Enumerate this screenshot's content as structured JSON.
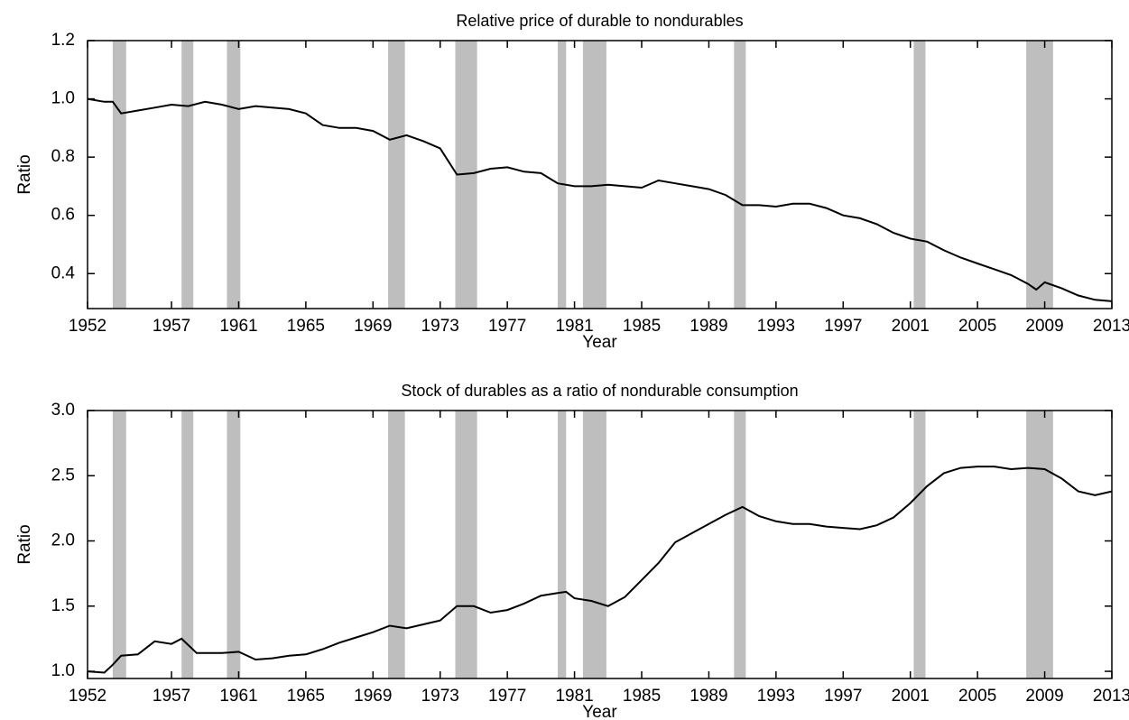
{
  "chart_data": [
    {
      "type": "line",
      "title": "Relative price of durable to nondurables",
      "ylabel": "Ratio",
      "xlabel": "Year",
      "xlim": [
        1952,
        2013
      ],
      "xticks": [
        1952,
        1957,
        1961,
        1965,
        1969,
        1973,
        1977,
        1981,
        1985,
        1989,
        1993,
        1997,
        2001,
        2005,
        2009,
        2013
      ],
      "ylim": [
        0.28,
        1.2
      ],
      "yticks": [
        0.4,
        0.6,
        0.8,
        {
          "value": 1,
          "label": "1.0"
        },
        1.2
      ],
      "recession_color": "#bebebe",
      "recessions": [
        [
          1953.5,
          1954.3
        ],
        [
          1957.6,
          1958.3
        ],
        [
          1960.3,
          1961.1
        ],
        [
          1969.9,
          1970.9
        ],
        [
          1973.9,
          1975.2
        ],
        [
          1980.0,
          1980.5
        ],
        [
          1981.5,
          1982.9
        ],
        [
          1990.5,
          1991.2
        ],
        [
          2001.2,
          2001.9
        ],
        [
          2007.9,
          2009.5
        ]
      ],
      "x": [
        1952,
        1953,
        1953.5,
        1954,
        1955,
        1956,
        1957,
        1958,
        1959,
        1960,
        1961,
        1962,
        1963,
        1964,
        1965,
        1966,
        1967,
        1968,
        1969,
        1970,
        1971,
        1972,
        1973,
        1974,
        1975,
        1976,
        1977,
        1978,
        1979,
        1980,
        1981,
        1982,
        1983,
        1984,
        1985,
        1986,
        1987,
        1988,
        1989,
        1990,
        1991,
        1992,
        1993,
        1994,
        1995,
        1996,
        1997,
        1998,
        1999,
        2000,
        2001,
        2002,
        2003,
        2004,
        2005,
        2006,
        2007,
        2008,
        2008.5,
        2009,
        2010,
        2011,
        2012,
        2013
      ],
      "color": "#000000",
      "values": [
        1.0,
        0.99,
        0.99,
        0.95,
        0.96,
        0.97,
        0.98,
        0.975,
        0.99,
        0.98,
        0.965,
        0.975,
        0.97,
        0.965,
        0.95,
        0.91,
        0.9,
        0.9,
        0.89,
        0.86,
        0.875,
        0.855,
        0.83,
        0.74,
        0.745,
        0.76,
        0.765,
        0.75,
        0.745,
        0.71,
        0.7,
        0.7,
        0.705,
        0.7,
        0.695,
        0.72,
        0.71,
        0.7,
        0.69,
        0.67,
        0.635,
        0.635,
        0.63,
        0.64,
        0.64,
        0.625,
        0.6,
        0.59,
        0.57,
        0.54,
        0.52,
        0.51,
        0.48,
        0.455,
        0.435,
        0.415,
        0.395,
        0.365,
        0.345,
        0.37,
        0.35,
        0.325,
        0.31,
        0.305
      ]
    },
    {
      "type": "line",
      "title": "Stock of durables as a ratio of nondurable consumption",
      "ylabel": "Ratio",
      "xlabel": "Year",
      "xlim": [
        1952,
        2013
      ],
      "xticks": [
        1952,
        1957,
        1961,
        1965,
        1969,
        1973,
        1977,
        1981,
        1985,
        1989,
        1993,
        1997,
        2001,
        2005,
        2009,
        2013
      ],
      "ylim": [
        0.945,
        3
      ],
      "yticks": [
        {
          "value": 1,
          "label": "1.0"
        },
        1.5,
        {
          "value": 2,
          "label": "2.0"
        },
        2.5,
        {
          "value": 3,
          "label": "3.0"
        }
      ],
      "recession_color": "#bebebe",
      "recessions": [
        [
          1953.5,
          1954.3
        ],
        [
          1957.6,
          1958.3
        ],
        [
          1960.3,
          1961.1
        ],
        [
          1969.9,
          1970.9
        ],
        [
          1973.9,
          1975.2
        ],
        [
          1980.0,
          1980.5
        ],
        [
          1981.5,
          1982.9
        ],
        [
          1990.5,
          1991.2
        ],
        [
          2001.2,
          2001.9
        ],
        [
          2007.9,
          2009.5
        ]
      ],
      "x": [
        1952,
        1953,
        1953.5,
        1954,
        1955,
        1956,
        1957,
        1957.6,
        1958.5,
        1960,
        1961,
        1962,
        1963,
        1964,
        1965,
        1966,
        1967,
        1968,
        1969,
        1970,
        1971,
        1972,
        1973,
        1974,
        1975,
        1976,
        1977,
        1978,
        1979,
        1980,
        1980.5,
        1981,
        1982,
        1983,
        1984,
        1985,
        1986,
        1987,
        1988,
        1989,
        1990,
        1991,
        1992,
        1993,
        1994,
        1995,
        1996,
        1997,
        1998,
        1999,
        2000,
        2001,
        2002,
        2003,
        2004,
        2005,
        2006,
        2007,
        2008,
        2009,
        2010,
        2011,
        2012,
        2013
      ],
      "color": "#000000",
      "values": [
        1.0,
        0.99,
        1.05,
        1.12,
        1.13,
        1.23,
        1.21,
        1.25,
        1.14,
        1.14,
        1.15,
        1.09,
        1.1,
        1.12,
        1.13,
        1.17,
        1.22,
        1.26,
        1.3,
        1.35,
        1.33,
        1.36,
        1.39,
        1.5,
        1.5,
        1.45,
        1.47,
        1.52,
        1.58,
        1.6,
        1.61,
        1.56,
        1.54,
        1.5,
        1.57,
        1.7,
        1.83,
        1.99,
        2.06,
        2.13,
        2.2,
        2.26,
        2.19,
        2.15,
        2.13,
        2.13,
        2.11,
        2.1,
        2.09,
        2.12,
        2.18,
        2.29,
        2.42,
        2.52,
        2.56,
        2.57,
        2.57,
        2.55,
        2.56,
        2.55,
        2.48,
        2.38,
        2.35,
        2.38
      ]
    }
  ]
}
